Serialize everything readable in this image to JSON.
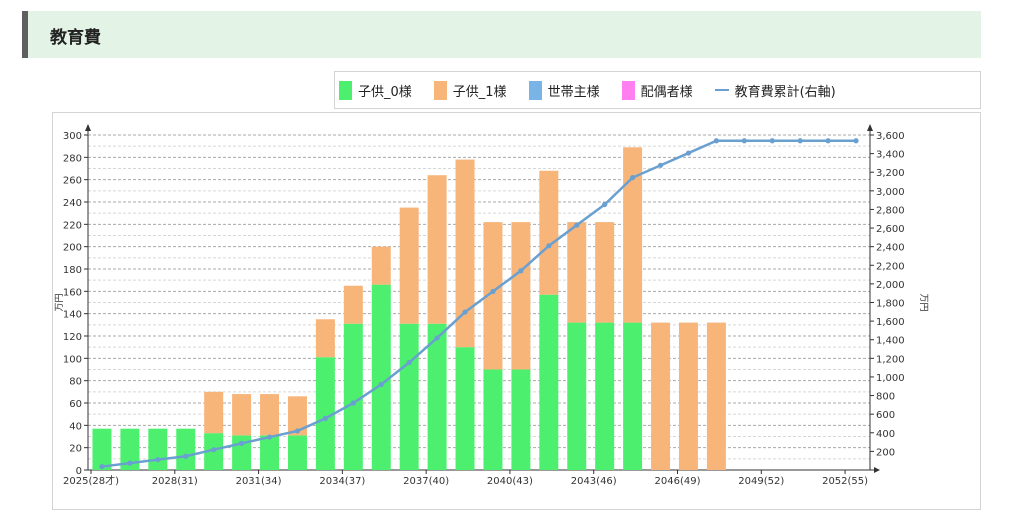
{
  "section": {
    "title": "教育費"
  },
  "legend": [
    {
      "label": "子供_0様",
      "color": "#4cf06e",
      "kind": "bar"
    },
    {
      "label": "子供_1様",
      "color": "#f8b57a",
      "kind": "bar"
    },
    {
      "label": "世帯主様",
      "color": "#7ab3e6",
      "kind": "bar"
    },
    {
      "label": "配偶者様",
      "color": "#ff7ef0",
      "kind": "bar"
    },
    {
      "label": "教育費累計(右軸)",
      "color": "#6aa0d0",
      "kind": "line"
    }
  ],
  "chart_data": {
    "type": "bar",
    "stacked": true,
    "categories": [
      "2025(28才)",
      "2026",
      "2027",
      "2028(31)",
      "2029",
      "2030",
      "2031(34)",
      "2032",
      "2033",
      "2034(37)",
      "2035",
      "2036",
      "2037(40)",
      "2038",
      "2039",
      "2040(43)",
      "2041",
      "2042",
      "2043(46)",
      "2044",
      "2045",
      "2046(49)",
      "2047",
      "2048",
      "2049(52)",
      "2050",
      "2051",
      "2052(55)"
    ],
    "series": [
      {
        "name": "子供_0様",
        "color": "#4cf06e",
        "axis": "left",
        "values": [
          37,
          37,
          37,
          37,
          33,
          31,
          31,
          31,
          101,
          131,
          166,
          131,
          131,
          110,
          90,
          90,
          157,
          132,
          132,
          132,
          0,
          0,
          0,
          0,
          0,
          0,
          0,
          0
        ]
      },
      {
        "name": "子供_1様",
        "color": "#f8b57a",
        "axis": "left",
        "values": [
          0,
          0,
          0,
          0,
          37,
          37,
          37,
          35,
          34,
          34,
          34,
          104,
          133,
          168,
          132,
          132,
          111,
          90,
          90,
          157,
          132,
          132,
          132,
          0,
          0,
          0,
          0,
          0
        ]
      },
      {
        "name": "世帯主様",
        "color": "#7ab3e6",
        "axis": "left",
        "values": [
          0,
          0,
          0,
          0,
          0,
          0,
          0,
          0,
          0,
          0,
          0,
          0,
          0,
          0,
          0,
          0,
          0,
          0,
          0,
          0,
          0,
          0,
          0,
          0,
          0,
          0,
          0,
          0
        ]
      },
      {
        "name": "配偶者様",
        "color": "#ff7ef0",
        "axis": "left",
        "values": [
          0,
          0,
          0,
          0,
          0,
          0,
          0,
          0,
          0,
          0,
          0,
          0,
          0,
          0,
          0,
          0,
          0,
          0,
          0,
          0,
          0,
          0,
          0,
          0,
          0,
          0,
          0,
          0
        ]
      },
      {
        "name": "教育費累計(右軸)",
        "type": "line",
        "color": "#6aa0d0",
        "axis": "right",
        "values": [
          37,
          74,
          111,
          148,
          218,
          286,
          354,
          420,
          555,
          720,
          920,
          1155,
          1419,
          1697,
          1919,
          2141,
          2409,
          2631,
          2853,
          3142,
          3274,
          3406,
          3538,
          3538,
          3538,
          3538,
          3538,
          3538
        ]
      }
    ],
    "x_tick_labels": [
      "2025(28才)",
      "2028(31)",
      "2031(34)",
      "2034(37)",
      "2037(40)",
      "2040(43)",
      "2043(46)",
      "2046(49)",
      "2049(52)",
      "2052(55)"
    ],
    "ylabel": "万円",
    "y2label": "万円",
    "ylim": [
      0,
      300
    ],
    "y2lim": [
      0,
      3600
    ],
    "y_ticks": [
      "0",
      "20",
      "40",
      "60",
      "80",
      "100",
      "120",
      "140",
      "160",
      "180",
      "200",
      "220",
      "240",
      "260",
      "280",
      "300"
    ],
    "y2_ticks": [
      "200",
      "400",
      "600",
      "800",
      "1,000",
      "1,200",
      "1,400",
      "1,600",
      "1,800",
      "2,000",
      "2,200",
      "2,400",
      "2,600",
      "2,800",
      "3,000",
      "3,200",
      "3,400",
      "3,600"
    ],
    "grid": true
  }
}
